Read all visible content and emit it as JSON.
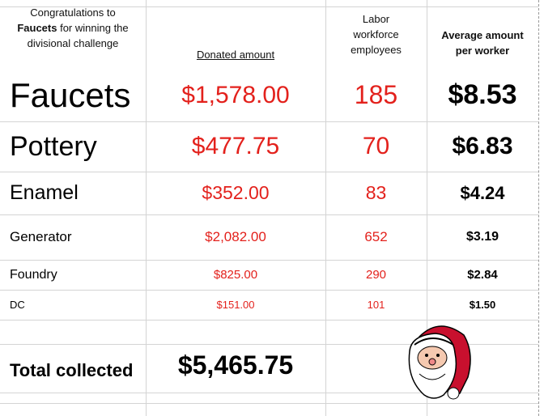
{
  "header": {
    "intro": [
      "Congratulations to",
      "Faucets",
      "for winning the divisional challenge"
    ],
    "columns": [
      "Donated amount",
      "Labor workforce employees",
      "Average amount per worker"
    ]
  },
  "table": {
    "rows": [
      [
        "Faucets",
        "$1,578.00",
        "185",
        "$8.53"
      ],
      [
        "Pottery",
        "$477.75",
        "70",
        "$6.83"
      ],
      [
        "Enamel",
        "$352.00",
        "83",
        "$4.24"
      ],
      [
        "Generator",
        "$2,082.00",
        "652",
        "$3.19"
      ],
      [
        "Foundry",
        "$825.00",
        "290",
        "$2.84"
      ],
      [
        "DC",
        "$151.00",
        "101",
        "$1.50"
      ]
    ]
  },
  "total": {
    "label": "Total collected",
    "amount": "$5,465.75"
  }
}
